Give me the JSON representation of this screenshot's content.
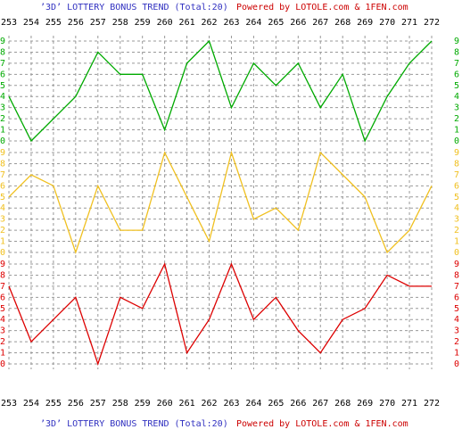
{
  "chart_data": {
    "type": "line",
    "title": "’3D’ LOTTERY BONUS TREND (Total:20)",
    "credit": "Powered by LOTOLE.com & 1FEN.com",
    "categories": [
      "253",
      "254",
      "255",
      "256",
      "257",
      "258",
      "259",
      "260",
      "261",
      "262",
      "263",
      "264",
      "265",
      "266",
      "267",
      "268",
      "269",
      "270",
      "271",
      "272"
    ],
    "series": [
      {
        "color": "#00aa00",
        "values": [
          4,
          0,
          2,
          4,
          8,
          6,
          6,
          1,
          7,
          9,
          3,
          7,
          5,
          7,
          3,
          6,
          0,
          4,
          7,
          9
        ]
      },
      {
        "color": "#f0c020",
        "values": [
          5,
          7,
          6,
          0,
          6,
          2,
          2,
          9,
          5,
          1,
          9,
          3,
          4,
          2,
          9,
          7,
          5,
          0,
          2,
          6
        ]
      },
      {
        "color": "#dd0000",
        "values": [
          7,
          2,
          4,
          6,
          0,
          6,
          5,
          9,
          1,
          4,
          9,
          4,
          6,
          3,
          1,
          4,
          5,
          8,
          7,
          7
        ]
      }
    ],
    "ylim": [
      0,
      9
    ],
    "yticks": [
      0,
      1,
      2,
      3,
      4,
      5,
      6,
      7,
      8,
      9
    ],
    "grid": true
  }
}
